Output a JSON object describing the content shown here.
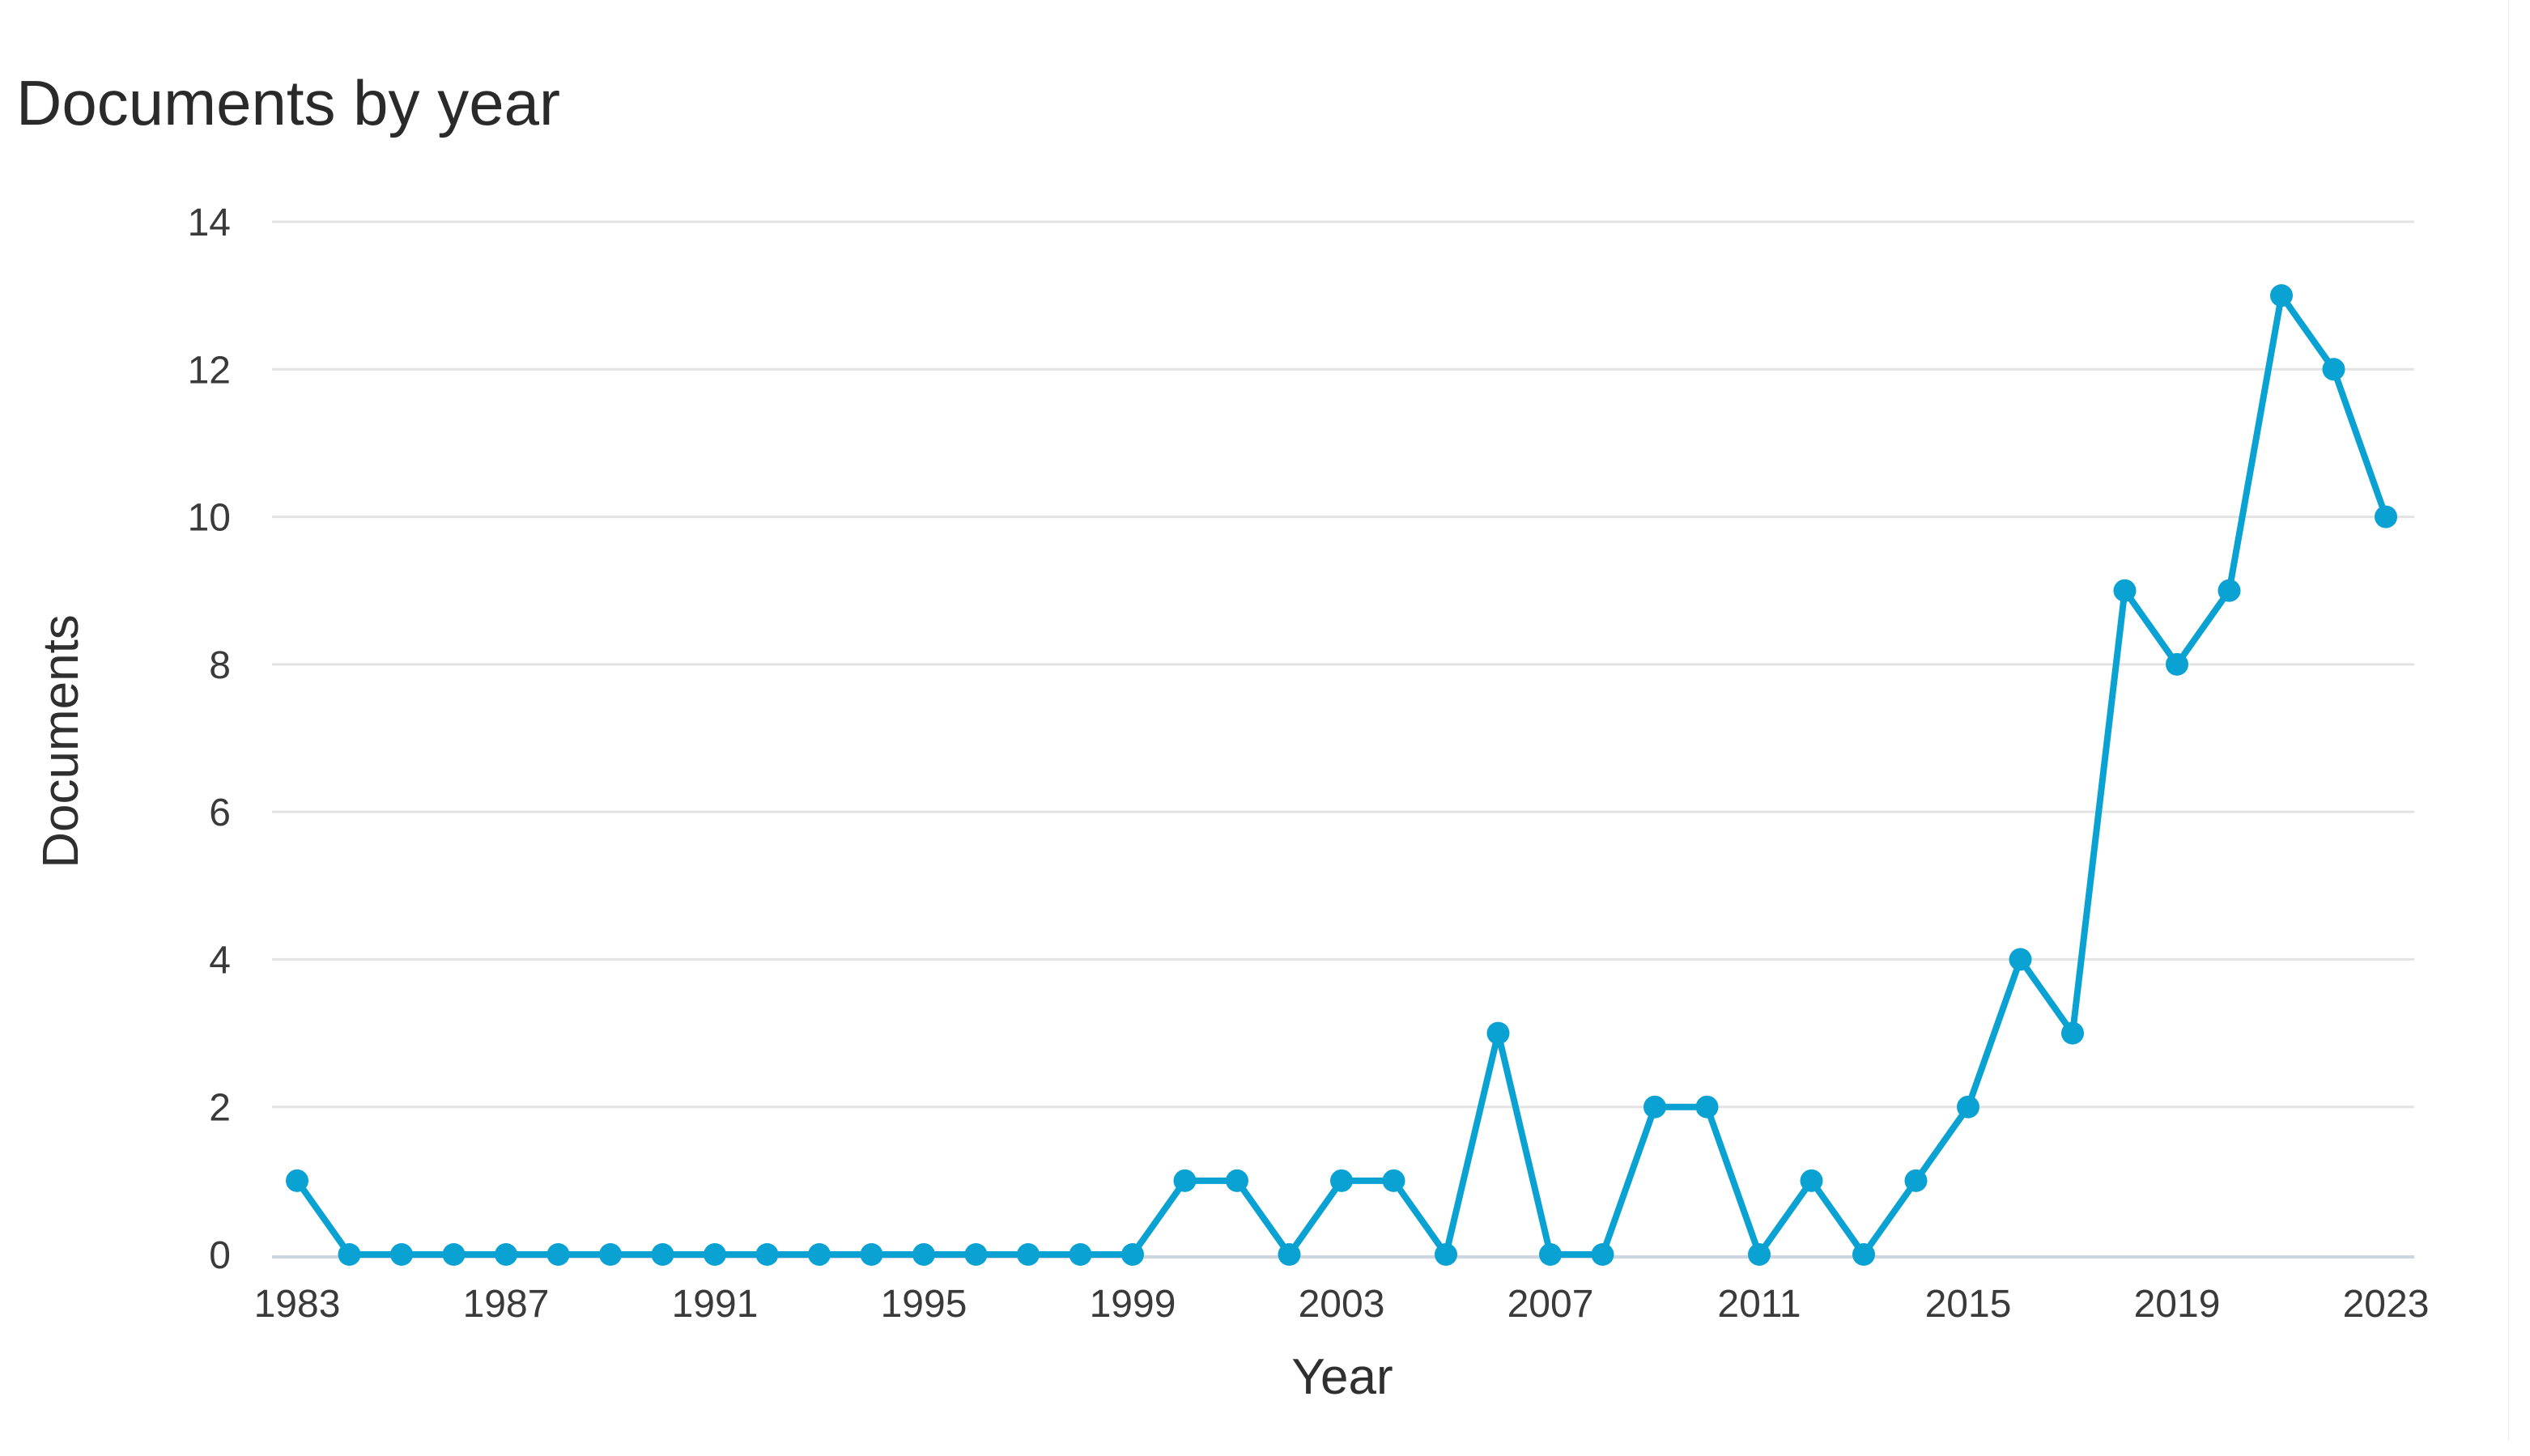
{
  "chart_data": {
    "type": "line",
    "title": "Documents by year",
    "xlabel": "Year",
    "ylabel": "Documents",
    "x": [
      1983,
      1984,
      1985,
      1986,
      1987,
      1988,
      1989,
      1990,
      1991,
      1992,
      1993,
      1994,
      1995,
      1996,
      1997,
      1998,
      1999,
      2000,
      2001,
      2002,
      2003,
      2004,
      2005,
      2006,
      2007,
      2008,
      2009,
      2010,
      2011,
      2012,
      2013,
      2014,
      2015,
      2016,
      2017,
      2018,
      2019,
      2020,
      2021,
      2022,
      2023
    ],
    "series": [
      {
        "values": [
          1,
          0,
          0,
          0,
          0,
          0,
          0,
          0,
          0,
          0,
          0,
          0,
          0,
          0,
          0,
          0,
          0,
          1,
          1,
          0,
          1,
          1,
          0,
          3,
          0,
          0,
          2,
          2,
          0,
          1,
          0,
          1,
          2,
          4,
          3,
          9,
          8,
          9,
          13,
          12,
          10
        ]
      }
    ],
    "x_ticks": [
      "1983",
      "1987",
      "1991",
      "1995",
      "1999",
      "2003",
      "2007",
      "2011",
      "2015",
      "2019",
      "2023"
    ],
    "y_ticks": [
      "0",
      "2",
      "4",
      "6",
      "8",
      "10",
      "12",
      "14"
    ],
    "ylim": [
      0,
      14
    ],
    "xlim": [
      1983,
      2023
    ],
    "grid": true,
    "colors": {
      "line": "#0aa2d3",
      "grid": "#e3e3e3",
      "axis": "#cdd5e0"
    }
  }
}
